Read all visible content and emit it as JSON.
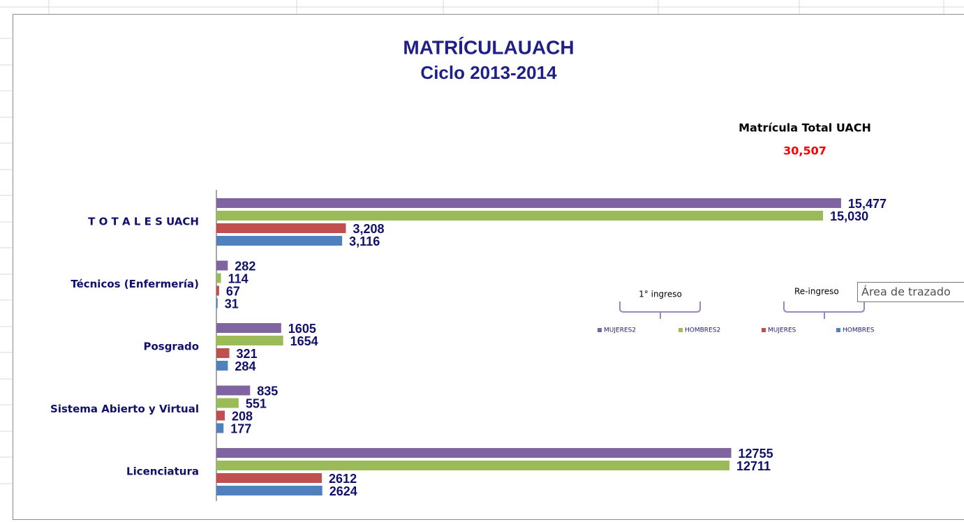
{
  "chart_data": {
    "type": "barh",
    "title": "MATRÍCULAUACH",
    "subtitle": "Ciclo 2013-2014",
    "annotations": {
      "total_label": "Matrícula Total UACH",
      "total_value": "30,507",
      "group1": "1° ingreso",
      "group2": "Re-ingreso",
      "tooltip": "Área de trazado"
    },
    "categories": [
      "T O T A L E S   UACH",
      "Técnicos (Enfermería)",
      "Posgrado",
      "Sistema Abierto y Virtual",
      "Licenciatura"
    ],
    "xlim": [
      0,
      17000
    ],
    "series": [
      {
        "name": "MUJERES2",
        "color": "#8064a2",
        "values": [
          15477,
          282,
          1605,
          835,
          12755
        ],
        "value_labels": [
          "15,477",
          "282",
          "1605",
          "835",
          "12755"
        ]
      },
      {
        "name": "HOMBRES2",
        "color": "#9bbb59",
        "values": [
          15030,
          114,
          1654,
          551,
          12711
        ],
        "value_labels": [
          "15,030",
          "114",
          "1654",
          "551",
          "12711"
        ]
      },
      {
        "name": "MUJERES",
        "color": "#c0504d",
        "values": [
          3208,
          67,
          321,
          208,
          2612
        ],
        "value_labels": [
          "3,208",
          "67",
          "321",
          "208",
          "2612"
        ]
      },
      {
        "name": "HOMBRES",
        "color": "#4f81bd",
        "values": [
          3116,
          31,
          284,
          177,
          2624
        ],
        "value_labels": [
          "3,116",
          "31",
          "284",
          "177",
          "2624"
        ]
      }
    ]
  }
}
